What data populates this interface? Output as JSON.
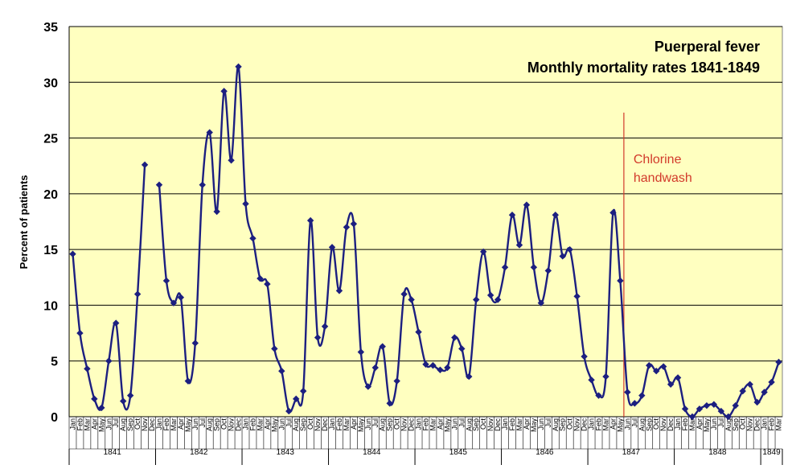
{
  "chart_data": {
    "type": "line",
    "title": [
      "Puerperal fever",
      "Monthly mortality rates 1841-1849"
    ],
    "ylabel": "Percent of patients",
    "xlabel": "",
    "ylim": [
      0,
      35
    ],
    "yticks": [
      0,
      5,
      10,
      15,
      20,
      25,
      30,
      35
    ],
    "grid": true,
    "legend": "none",
    "colors": {
      "plot_background": "#ffffc0",
      "line": "#1c1f80",
      "gridline": "#000000",
      "annotation": "#d23a2b"
    },
    "months": [
      "Jan",
      "Feb",
      "Mar",
      "Apr",
      "May",
      "Jun",
      "Jul",
      "Aug",
      "Sep",
      "Oct",
      "Nov",
      "Dec"
    ],
    "start": {
      "year": 1841,
      "month": "Jan"
    },
    "years": [
      {
        "label": "1841",
        "months": 12
      },
      {
        "label": "1842",
        "months": 12
      },
      {
        "label": "1843",
        "months": 12
      },
      {
        "label": "1844",
        "months": 12
      },
      {
        "label": "1845",
        "months": 12
      },
      {
        "label": "1846",
        "months": 12
      },
      {
        "label": "1847",
        "months": 12
      },
      {
        "label": "1848",
        "months": 12
      },
      {
        "label": "1849",
        "months": 3
      }
    ],
    "series": [
      {
        "values": [
          14.6,
          7.5,
          4.3,
          1.6,
          0.8,
          5.0,
          8.4,
          1.4,
          1.9,
          11.0,
          22.6,
          null,
          20.8,
          12.2,
          10.2,
          10.7,
          3.2,
          6.6,
          20.8,
          25.5,
          18.4,
          29.2,
          23.0,
          31.4,
          19.1,
          16.0,
          12.4,
          11.9,
          6.1,
          4.1,
          0.5,
          1.6,
          2.3,
          17.6,
          7.1,
          8.1,
          15.2,
          11.3,
          17.0,
          17.3,
          5.8,
          2.7,
          4.4,
          6.3,
          1.2,
          3.2,
          11.0,
          10.5,
          7.6,
          4.7,
          4.6,
          4.2,
          4.4,
          7.1,
          6.1,
          3.6,
          10.5,
          14.8,
          10.9,
          10.5,
          13.4,
          18.1,
          15.4,
          19.0,
          13.4,
          10.2,
          13.1,
          18.1,
          14.4,
          15.0,
          10.8,
          5.4,
          3.3,
          1.9,
          3.6,
          18.3,
          12.2,
          2.2,
          1.2,
          1.9,
          4.6,
          4.1,
          4.5,
          2.9,
          3.5,
          0.7,
          0.0,
          0.7,
          1.0,
          1.1,
          0.5,
          0.0,
          1.0,
          2.3,
          2.9,
          1.3,
          2.2,
          3.1,
          4.9
        ]
      }
    ],
    "annotations": [
      {
        "text": [
          "Chlorine",
          "handwash"
        ],
        "x_index": 76.5
      }
    ]
  }
}
